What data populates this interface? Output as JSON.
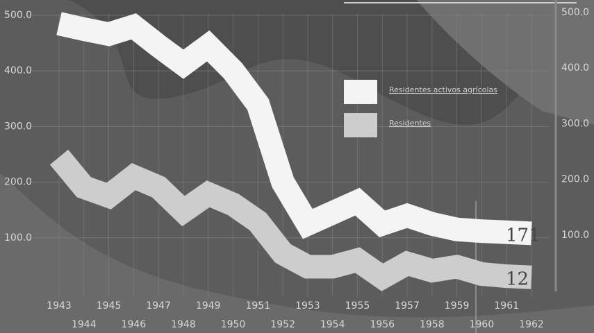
{
  "chart_data": {
    "type": "line",
    "x": [
      1943,
      1944,
      1945,
      1946,
      1947,
      1948,
      1949,
      1950,
      1951,
      1952,
      1953,
      1954,
      1955,
      1956,
      1957,
      1958,
      1959,
      1960,
      1961,
      1962
    ],
    "series": [
      {
        "name": "Residentes activos agrícolas",
        "color": "#f4f4f4",
        "values": [
          485,
          475,
          466,
          480,
          445,
          412,
          445,
          400,
          340,
          200,
          125,
          145,
          165,
          125,
          140,
          125,
          115,
          112,
          110,
          108
        ]
      },
      {
        "name": "Residentes",
        "color": "#cdcdcd",
        "values": [
          245,
          191,
          175,
          210,
          191,
          148,
          179,
          160,
          129,
          72,
          48,
          48,
          60,
          29,
          54,
          41,
          48,
          35,
          31,
          29
        ]
      }
    ],
    "xlim": [
      1943,
      1962
    ],
    "xticks": [
      1943,
      1944,
      1945,
      1946,
      1947,
      1948,
      1949,
      1950,
      1951,
      1952,
      1953,
      1954,
      1955,
      1956,
      1957,
      1958,
      1959,
      1960,
      1961,
      1962
    ],
    "ylim": [
      0,
      500
    ],
    "yticks": [
      {
        "value": 100,
        "label": "100.0"
      },
      {
        "value": 200,
        "label": "200.0"
      },
      {
        "value": 300,
        "label": "300.0"
      },
      {
        "value": 400,
        "label": "400.0"
      },
      {
        "value": 500,
        "label": "500.0"
      }
    ],
    "grid": true,
    "legend": "upper-right",
    "annotations": [
      "171",
      "12"
    ]
  }
}
